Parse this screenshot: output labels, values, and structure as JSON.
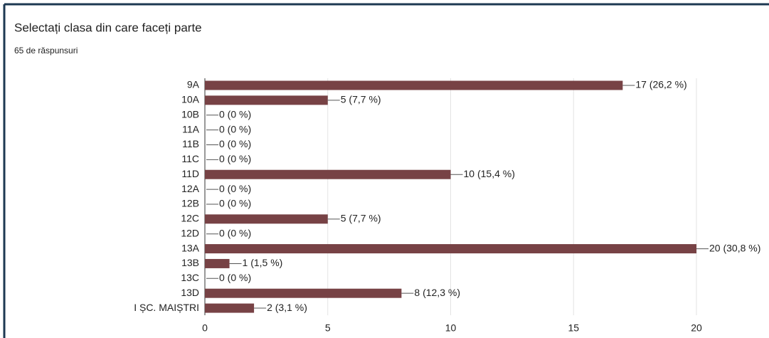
{
  "chart_data": {
    "type": "hbar",
    "title": "Selectați clasa din care faceți parte",
    "subtitle": "65 de răspunsuri",
    "categories": [
      "9A",
      "10A",
      "10B",
      "11A",
      "11B",
      "11C",
      "11D",
      "12A",
      "12B",
      "12C",
      "12D",
      "13A",
      "13B",
      "13C",
      "13D",
      "I ȘC. MAIȘTRI"
    ],
    "values": [
      17,
      5,
      0,
      0,
      0,
      0,
      10,
      0,
      0,
      5,
      0,
      20,
      1,
      0,
      8,
      2
    ],
    "value_labels": [
      "17 (26,2 %)",
      "5 (7,7 %)",
      "0 (0 %)",
      "0 (0 %)",
      "0 (0 %)",
      "0 (0 %)",
      "10 (15,4 %)",
      "0 (0 %)",
      "0 (0 %)",
      "5 (7,7 %)",
      "0 (0 %)",
      "20 (30,8 %)",
      "1 (1,5 %)",
      "0 (0 %)",
      "8 (12,3 %)",
      "2 (3,1 %)"
    ],
    "color": "#774245",
    "xlim": [
      0,
      20
    ],
    "xticks": [
      0,
      5,
      10,
      15,
      20
    ],
    "grid": true
  }
}
